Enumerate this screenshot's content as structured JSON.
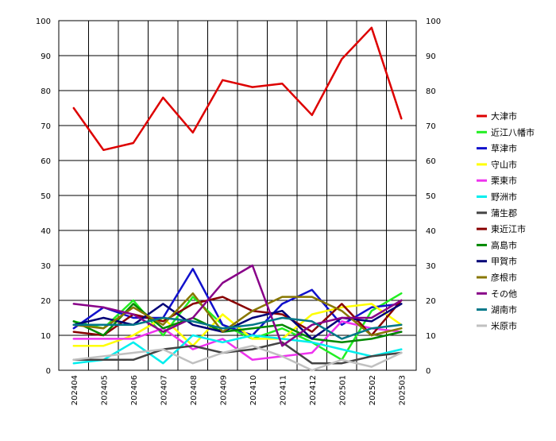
{
  "chart_data": {
    "type": "line",
    "title": "",
    "xlabel": "",
    "ylabel": "",
    "ylim": [
      0,
      100
    ],
    "yticks": [
      0,
      10,
      20,
      30,
      40,
      50,
      60,
      70,
      80,
      90,
      100
    ],
    "grid": true,
    "legend_position": "right",
    "categories": [
      "202404",
      "202405",
      "202406",
      "202407",
      "202408",
      "202409",
      "202410",
      "202411",
      "202412",
      "202501",
      "202502",
      "202503"
    ],
    "series": [
      {
        "name": "大津市",
        "color": "#dd0000",
        "values": [
          75,
          63,
          65,
          78,
          68,
          83,
          81,
          82,
          73,
          89,
          98,
          72
        ]
      },
      {
        "name": "近江八幡市",
        "color": "#22ee22",
        "values": [
          14,
          12,
          20,
          10,
          21,
          13,
          9,
          12,
          8,
          3,
          17,
          22
        ]
      },
      {
        "name": "草津市",
        "color": "#1111cc",
        "values": [
          12,
          18,
          15,
          15,
          29,
          13,
          10,
          19,
          23,
          13,
          18,
          19
        ]
      },
      {
        "name": "守山市",
        "color": "#ffff00",
        "values": [
          7,
          7,
          10,
          15,
          7,
          16,
          9,
          9,
          16,
          18,
          19,
          13
        ]
      },
      {
        "name": "栗東市",
        "color": "#ee33ee",
        "values": [
          9,
          9,
          9,
          12,
          6,
          9,
          3,
          4,
          5,
          14,
          12,
          11
        ]
      },
      {
        "name": "野洲市",
        "color": "#00eeee",
        "values": [
          2,
          3,
          8,
          2,
          10,
          8,
          10,
          9,
          8,
          6,
          4,
          6
        ]
      },
      {
        "name": "蒲生郡",
        "color": "#444444",
        "values": [
          3,
          3,
          3,
          6,
          7,
          5,
          6,
          8,
          2,
          2,
          4,
          5
        ]
      },
      {
        "name": "東近江市",
        "color": "#880000",
        "values": [
          11,
          10,
          16,
          14,
          19,
          21,
          17,
          16,
          11,
          19,
          10,
          20
        ]
      },
      {
        "name": "高島市",
        "color": "#008800",
        "values": [
          14,
          10,
          19,
          12,
          15,
          11,
          12,
          13,
          9,
          8,
          9,
          11
        ]
      },
      {
        "name": "甲賀市",
        "color": "#000077",
        "values": [
          13,
          15,
          13,
          19,
          13,
          11,
          15,
          17,
          9,
          15,
          14,
          19
        ]
      },
      {
        "name": "彦根市",
        "color": "#887700",
        "values": [
          13,
          12,
          18,
          13,
          22,
          11,
          17,
          21,
          21,
          17,
          10,
          12
        ]
      },
      {
        "name": "その他",
        "color": "#880088",
        "values": [
          19,
          18,
          16,
          11,
          15,
          25,
          30,
          7,
          13,
          15,
          15,
          20
        ]
      },
      {
        "name": "湖南市",
        "color": "#007788",
        "values": [
          13,
          13,
          13,
          15,
          14,
          12,
          13,
          15,
          14,
          9,
          12,
          13
        ]
      },
      {
        "name": "米原市",
        "color": "#c0c0c0",
        "values": [
          3,
          4,
          5,
          6,
          2,
          5,
          7,
          4,
          0,
          3,
          1,
          5
        ]
      }
    ]
  }
}
